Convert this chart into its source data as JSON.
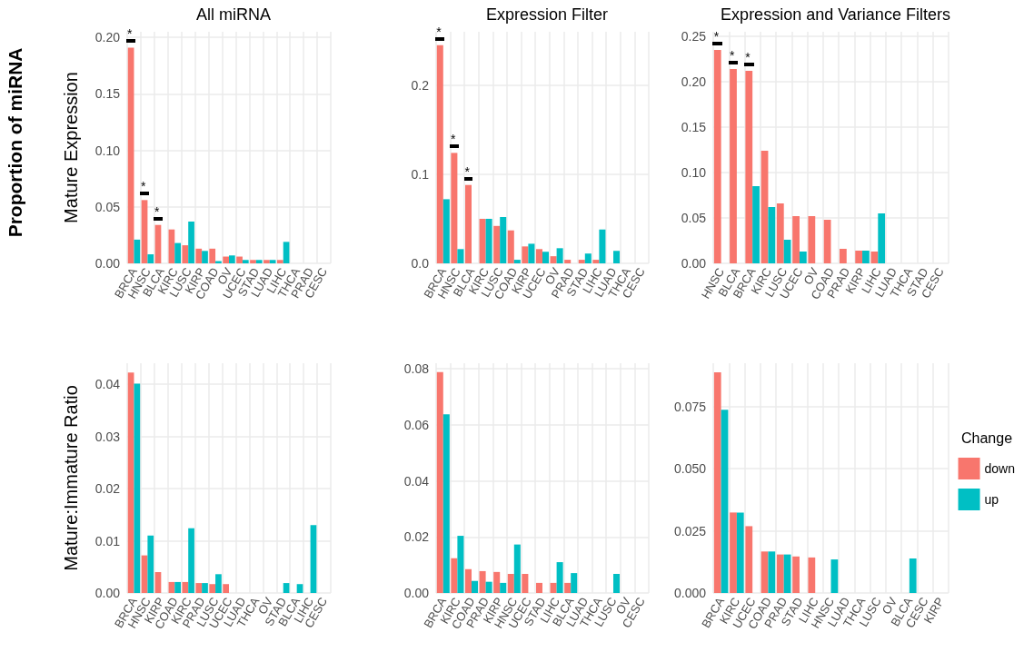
{
  "chart_data": [
    {
      "type": "bar",
      "title": "All miRNA",
      "ylabel": "Mature Expression",
      "annotations": [
        "Proportion of miRNA",
        {
          "text": "*",
          "x": "BRCA",
          "y": 0.191
        },
        {
          "text": "*",
          "x": "HNSC",
          "y": 0.056
        },
        {
          "text": "*",
          "x": "BLCA",
          "y": 0.034
        }
      ],
      "categories": [
        "BRCA",
        "HNSC",
        "BLCA",
        "KIRC",
        "LUSC",
        "KIRP",
        "COAD",
        "OV",
        "UCEC",
        "STAD",
        "LUAD",
        "LIHC",
        "THCA",
        "PRAD",
        "CESC"
      ],
      "series": [
        {
          "color": "#f8766d",
          "values": [
            0.191,
            0.056,
            0.034,
            0.03,
            0.016,
            0.013,
            0.013,
            0.006,
            0.006,
            0.003,
            0.003,
            0.003,
            0,
            0,
            0
          ]
        },
        {
          "color": "#00bfc4",
          "values": [
            0.021,
            0.008,
            0,
            0.018,
            0.037,
            0.011,
            0.002,
            0.007,
            0.003,
            0.003,
            0.003,
            0.019,
            0,
            0,
            0
          ]
        }
      ],
      "ylim": [
        0,
        0.205
      ],
      "yticks": [
        {
          "value": 0,
          "label": "0.00"
        },
        {
          "value": 0.05,
          "label": "0.05"
        },
        {
          "value": 0.1,
          "label": "0.10"
        },
        {
          "value": 0.15,
          "label": "0.15"
        },
        {
          "value": 0.2,
          "label": "0.20"
        }
      ],
      "grid": true
    },
    {
      "type": "bar",
      "title": "Expression Filter",
      "annotations": [
        {
          "text": "*",
          "x": "BRCA",
          "y": 0.245
        },
        {
          "text": "*",
          "x": "HNSC",
          "y": 0.124
        },
        {
          "text": "*",
          "x": "BLCA",
          "y": 0.088
        }
      ],
      "categories": [
        "BRCA",
        "HNSC",
        "BLCA",
        "KIRC",
        "LUSC",
        "COAD",
        "KIRP",
        "UCEC",
        "OV",
        "PRAD",
        "STAD",
        "LIHC",
        "LUAD",
        "THCA",
        "CESC"
      ],
      "series": [
        {
          "color": "#f8766d",
          "values": [
            0.245,
            0.124,
            0.088,
            0.05,
            0.042,
            0.037,
            0.019,
            0.016,
            0.008,
            0.004,
            0.004,
            0.004,
            0,
            0,
            0
          ]
        },
        {
          "color": "#00bfc4",
          "values": [
            0.072,
            0.016,
            0,
            0.05,
            0.052,
            0.004,
            0.022,
            0.013,
            0.017,
            0,
            0.011,
            0.038,
            0.014,
            0,
            0
          ]
        }
      ],
      "ylim": [
        0,
        0.26
      ],
      "yticks": [
        {
          "value": 0,
          "label": "0.0"
        },
        {
          "value": 0.1,
          "label": "0.1"
        },
        {
          "value": 0.2,
          "label": "0.2"
        }
      ],
      "grid": true
    },
    {
      "type": "bar",
      "title": "Expression and Variance Filters",
      "annotations": [
        {
          "text": "*",
          "x": "HNSC",
          "y": 0.235
        },
        {
          "text": "*",
          "x": "BLCA",
          "y": 0.214
        },
        {
          "text": "*",
          "x": "BRCA",
          "y": 0.212
        }
      ],
      "categories": [
        "HNSC",
        "BLCA",
        "BRCA",
        "KIRC",
        "LUSC",
        "UCEC",
        "OV",
        "COAD",
        "PRAD",
        "KIRP",
        "LIHC",
        "LUAD",
        "THCA",
        "STAD",
        "CESC"
      ],
      "series": [
        {
          "color": "#f8766d",
          "values": [
            0.235,
            0.214,
            0.212,
            0.124,
            0.066,
            0.052,
            0.052,
            0.048,
            0.016,
            0.014,
            0.013,
            0,
            0,
            0,
            0
          ]
        },
        {
          "color": "#00bfc4",
          "values": [
            0,
            0,
            0.085,
            0.062,
            0.026,
            0.013,
            0,
            0,
            0,
            0.014,
            0.055,
            0,
            0,
            0,
            0
          ]
        }
      ],
      "ylim": [
        0,
        0.255
      ],
      "yticks": [
        {
          "value": 0,
          "label": "0.00"
        },
        {
          "value": 0.05,
          "label": "0.05"
        },
        {
          "value": 0.1,
          "label": "0.10"
        },
        {
          "value": 0.15,
          "label": "0.15"
        },
        {
          "value": 0.2,
          "label": "0.20"
        },
        {
          "value": 0.25,
          "label": "0.25"
        }
      ],
      "grid": true
    },
    {
      "type": "bar",
      "ylabel": "Mature:Immature Ratio",
      "categories": [
        "BRCA",
        "HNSC",
        "KIRP",
        "COAD",
        "KIRC",
        "PRAD",
        "LUSC",
        "UCEC",
        "LUAD",
        "THCA",
        "OV",
        "STAD",
        "BLCA",
        "LIHC",
        "CESC"
      ],
      "series": [
        {
          "color": "#f8766d",
          "values": [
            0.0422,
            0.0072,
            0.004,
            0.0021,
            0.0021,
            0.0019,
            0.0017,
            0.0017,
            0,
            0,
            0,
            0,
            0,
            0,
            0
          ]
        },
        {
          "color": "#00bfc4",
          "values": [
            0.0401,
            0.011,
            0,
            0.0021,
            0.0124,
            0.0019,
            0.0036,
            0,
            0,
            0,
            0,
            0.0019,
            0.0017,
            0.013,
            0
          ]
        }
      ],
      "ylim": [
        0,
        0.044
      ],
      "yticks": [
        {
          "value": 0,
          "label": "0.00"
        },
        {
          "value": 0.01,
          "label": "0.01"
        },
        {
          "value": 0.02,
          "label": "0.02"
        },
        {
          "value": 0.03,
          "label": "0.03"
        },
        {
          "value": 0.04,
          "label": "0.04"
        }
      ],
      "grid": true
    },
    {
      "type": "bar",
      "categories": [
        "BRCA",
        "KIRC",
        "COAD",
        "PRAD",
        "KIRP",
        "HNSC",
        "UCEC",
        "STAD",
        "LIHC",
        "BLCA",
        "LUAD",
        "THCA",
        "LUSC",
        "OV",
        "CESC"
      ],
      "series": [
        {
          "color": "#f8766d",
          "values": [
            0.0788,
            0.0124,
            0.0085,
            0.0078,
            0.0075,
            0.0068,
            0.0068,
            0.0036,
            0.0036,
            0.0036,
            0,
            0,
            0,
            0,
            0
          ]
        },
        {
          "color": "#00bfc4",
          "values": [
            0.0638,
            0.0204,
            0.0043,
            0.004,
            0.0036,
            0.0173,
            0,
            0,
            0.011,
            0.0071,
            0,
            0,
            0.0068,
            0,
            0
          ]
        }
      ],
      "ylim": [
        0,
        0.082
      ],
      "yticks": [
        {
          "value": 0,
          "label": "0.00"
        },
        {
          "value": 0.02,
          "label": "0.02"
        },
        {
          "value": 0.04,
          "label": "0.04"
        },
        {
          "value": 0.06,
          "label": "0.06"
        },
        {
          "value": 0.08,
          "label": "0.08"
        }
      ],
      "grid": true
    },
    {
      "type": "bar",
      "legend": "right",
      "legend_title": "Change",
      "categories": [
        "BRCA",
        "KIRC",
        "UCEC",
        "COAD",
        "PRAD",
        "STAD",
        "LIHC",
        "HNSC",
        "LUAD",
        "THCA",
        "LUSC",
        "OV",
        "BLCA",
        "CESC",
        "KIRP"
      ],
      "series": [
        {
          "name": "down",
          "color": "#f8766d",
          "values": [
            0.0888,
            0.0324,
            0.0269,
            0.0167,
            0.0155,
            0.0147,
            0.0143,
            0,
            0,
            0,
            0,
            0,
            0,
            0,
            0
          ]
        },
        {
          "name": "up",
          "color": "#00bfc4",
          "values": [
            0.0738,
            0.0324,
            0,
            0.0167,
            0.0155,
            0,
            0,
            0.0135,
            0,
            0,
            0,
            0,
            0.0139,
            0,
            0
          ]
        }
      ],
      "ylim": [
        0,
        0.0925
      ],
      "yticks": [
        {
          "value": 0,
          "label": "0.000"
        },
        {
          "value": 0.025,
          "label": "0.025"
        },
        {
          "value": 0.05,
          "label": "0.050"
        },
        {
          "value": 0.075,
          "label": "0.075"
        }
      ],
      "grid": true
    }
  ]
}
